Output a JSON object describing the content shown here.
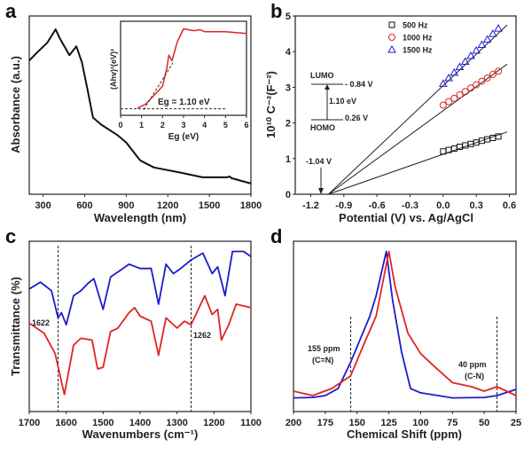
{
  "colors": {
    "blue": "#1c1ccc",
    "red": "#e02424",
    "black": "#111111"
  },
  "chart_data": [
    {
      "panel": "a",
      "type": "line",
      "xlabel": "Wavelength (nm)",
      "ylabel": "Absorbance (a.u.)",
      "xlim": [
        200,
        1800
      ],
      "ylim": [
        0,
        1
      ],
      "xticks": [
        300,
        600,
        900,
        1200,
        1500,
        1800
      ],
      "series": [
        {
          "name": "absorbance",
          "color": "black",
          "points": [
            [
              200,
              0.75
            ],
            [
              250,
              0.79
            ],
            [
              330,
              0.85
            ],
            [
              390,
              0.925
            ],
            [
              420,
              0.875
            ],
            [
              490,
              0.78
            ],
            [
              540,
              0.83
            ],
            [
              580,
              0.74
            ],
            [
              620,
              0.59
            ],
            [
              660,
              0.43
            ],
            [
              720,
              0.39
            ],
            [
              840,
              0.33
            ],
            [
              900,
              0.29
            ],
            [
              1000,
              0.19
            ],
            [
              1100,
              0.15
            ],
            [
              1300,
              0.12
            ],
            [
              1450,
              0.095
            ],
            [
              1630,
              0.095
            ],
            [
              1645,
              0.1
            ],
            [
              1660,
              0.09
            ],
            [
              1800,
              0.06
            ]
          ]
        }
      ],
      "inset": {
        "type": "line",
        "xlabel": "Eg (eV)",
        "ylabel": "(Ahv)²(eV)²",
        "xlim": [
          0,
          6
        ],
        "ylim": [
          0,
          1
        ],
        "xticks": [
          0,
          1,
          2,
          3,
          4,
          5,
          6
        ],
        "annotation": "Eg = 1.10 eV",
        "series": [
          {
            "name": "tauc",
            "color": "red",
            "points": [
              [
                0.8,
                0.075
              ],
              [
                1.2,
                0.12
              ],
              [
                1.5,
                0.19
              ],
              [
                1.8,
                0.26
              ],
              [
                2.0,
                0.31
              ],
              [
                2.2,
                0.5
              ],
              [
                2.3,
                0.64
              ],
              [
                2.45,
                0.58
              ],
              [
                2.7,
                0.78
              ],
              [
                3.0,
                0.92
              ],
              [
                3.5,
                0.9
              ],
              [
                3.8,
                0.91
              ],
              [
                4.0,
                0.89
              ],
              [
                5.0,
                0.89
              ],
              [
                6.0,
                0.87
              ]
            ]
          }
        ],
        "tangent": [
          [
            1.1,
            0.06
          ],
          [
            2.5,
            0.56
          ]
        ],
        "baseline": [
          [
            0,
            0.07
          ],
          [
            5,
            0.07
          ]
        ]
      }
    },
    {
      "panel": "b",
      "type": "scatter",
      "xlabel": "Potential (V) vs. Ag/AgCl",
      "ylabel": "10¹⁰ C⁻²(F⁻²)",
      "xlim": [
        -1.34,
        0.66
      ],
      "ylim": [
        0,
        5
      ],
      "xticks": [
        -1.2,
        -0.9,
        -0.6,
        -0.3,
        0.0,
        0.3,
        0.6
      ],
      "yticks": [
        0,
        1,
        2,
        3,
        4,
        5
      ],
      "legend_position": "top-right",
      "series": [
        {
          "name": "500 Hz",
          "marker": "square",
          "color": "black",
          "fit": [
            [
              -1.04,
              0
            ],
            [
              0.58,
              1.75
            ]
          ],
          "x": [
            0,
            0.05,
            0.1,
            0.15,
            0.2,
            0.25,
            0.3,
            0.35,
            0.4,
            0.45,
            0.5
          ],
          "y": [
            1.2,
            1.24,
            1.28,
            1.33,
            1.37,
            1.41,
            1.45,
            1.5,
            1.54,
            1.58,
            1.62
          ]
        },
        {
          "name": "1000 Hz",
          "marker": "circle",
          "color": "red",
          "fit": [
            [
              -1.04,
              0
            ],
            [
              0.58,
              3.65
            ]
          ],
          "x": [
            0,
            0.05,
            0.1,
            0.15,
            0.2,
            0.25,
            0.3,
            0.35,
            0.4,
            0.45,
            0.5
          ],
          "y": [
            2.5,
            2.6,
            2.69,
            2.79,
            2.88,
            2.98,
            3.07,
            3.17,
            3.26,
            3.36,
            3.45
          ]
        },
        {
          "name": "1500 Hz",
          "marker": "triangle",
          "color": "blue",
          "fit": [
            [
              -1.04,
              0
            ],
            [
              0.58,
              4.75
            ]
          ],
          "x": [
            0,
            0.05,
            0.1,
            0.15,
            0.2,
            0.25,
            0.3,
            0.35,
            0.4,
            0.45,
            0.5
          ],
          "y": [
            3.1,
            3.26,
            3.41,
            3.57,
            3.72,
            3.88,
            4.03,
            4.19,
            4.34,
            4.5,
            4.65
          ]
        }
      ],
      "annotations": {
        "intercept": "-1.04 V",
        "lumo": "LUMO",
        "lumo_v": "- 0.84 V",
        "gap": "1.10 eV",
        "homo": "HOMO",
        "homo_v": "0.26 V"
      }
    },
    {
      "panel": "c",
      "type": "line",
      "xlabel": "Wavenumbers (cm⁻¹)",
      "ylabel": "Transmittance (%)",
      "xlim": [
        1700,
        1100
      ],
      "ylim": [
        0,
        1
      ],
      "xticks": [
        1700,
        1600,
        1500,
        1400,
        1300,
        1200,
        1100
      ],
      "vlines": [
        {
          "x": 1622,
          "label": "1622"
        },
        {
          "x": 1262,
          "label": "1262"
        }
      ],
      "series": [
        {
          "name": "blue-spectrum",
          "color": "blue",
          "points": [
            [
              1700,
              0.72
            ],
            [
              1670,
              0.76
            ],
            [
              1640,
              0.71
            ],
            [
              1622,
              0.55
            ],
            [
              1613,
              0.58
            ],
            [
              1600,
              0.51
            ],
            [
              1580,
              0.68
            ],
            [
              1560,
              0.71
            ],
            [
              1540,
              0.755
            ],
            [
              1525,
              0.78
            ],
            [
              1500,
              0.6
            ],
            [
              1480,
              0.79
            ],
            [
              1460,
              0.82
            ],
            [
              1430,
              0.865
            ],
            [
              1400,
              0.84
            ],
            [
              1370,
              0.84
            ],
            [
              1350,
              0.63
            ],
            [
              1330,
              0.865
            ],
            [
              1310,
              0.81
            ],
            [
              1290,
              0.84
            ],
            [
              1262,
              0.89
            ],
            [
              1230,
              0.93
            ],
            [
              1205,
              0.81
            ],
            [
              1190,
              0.85
            ],
            [
              1170,
              0.68
            ],
            [
              1150,
              0.94
            ],
            [
              1120,
              0.94
            ],
            [
              1100,
              0.91
            ]
          ]
        },
        {
          "name": "red-spectrum",
          "color": "red",
          "points": [
            [
              1700,
              0.52
            ],
            [
              1660,
              0.46
            ],
            [
              1630,
              0.34
            ],
            [
              1605,
              0.1
            ],
            [
              1580,
              0.39
            ],
            [
              1560,
              0.43
            ],
            [
              1530,
              0.42
            ],
            [
              1515,
              0.25
            ],
            [
              1500,
              0.26
            ],
            [
              1480,
              0.47
            ],
            [
              1460,
              0.49
            ],
            [
              1430,
              0.58
            ],
            [
              1415,
              0.61
            ],
            [
              1400,
              0.56
            ],
            [
              1370,
              0.53
            ],
            [
              1350,
              0.33
            ],
            [
              1330,
              0.55
            ],
            [
              1300,
              0.49
            ],
            [
              1280,
              0.53
            ],
            [
              1262,
              0.51
            ],
            [
              1225,
              0.68
            ],
            [
              1205,
              0.57
            ],
            [
              1190,
              0.6
            ],
            [
              1180,
              0.42
            ],
            [
              1160,
              0.51
            ],
            [
              1140,
              0.63
            ],
            [
              1100,
              0.61
            ]
          ]
        }
      ]
    },
    {
      "panel": "d",
      "type": "line",
      "xlabel": "Chemical Shift (ppm)",
      "ylabel": "",
      "xlim": [
        200,
        25
      ],
      "ylim": [
        0,
        1
      ],
      "xticks": [
        200,
        175,
        150,
        125,
        100,
        75,
        50,
        25
      ],
      "vlines": [
        {
          "x": 155,
          "label": "155 ppm",
          "sub": "(C=N)"
        },
        {
          "x": 40,
          "label": "40 ppm",
          "sub": "(C-N)"
        }
      ],
      "series": [
        {
          "name": "blue-spectrum",
          "color": "blue",
          "points": [
            [
              200,
              0.08
            ],
            [
              185,
              0.083
            ],
            [
              175,
              0.094
            ],
            [
              165,
              0.135
            ],
            [
              155,
              0.29
            ],
            [
              145,
              0.47
            ],
            [
              140,
              0.56
            ],
            [
              135,
              0.68
            ],
            [
              127,
              0.94
            ],
            [
              122,
              0.65
            ],
            [
              115,
              0.35
            ],
            [
              108,
              0.135
            ],
            [
              100,
              0.11
            ],
            [
              75,
              0.08
            ],
            [
              50,
              0.083
            ],
            [
              40,
              0.094
            ],
            [
              25,
              0.13
            ]
          ]
        },
        {
          "name": "red-spectrum",
          "color": "red",
          "points": [
            [
              200,
              0.12
            ],
            [
              185,
              0.094
            ],
            [
              170,
              0.135
            ],
            [
              155,
              0.21
            ],
            [
              145,
              0.39
            ],
            [
              135,
              0.56
            ],
            [
              125,
              0.94
            ],
            [
              120,
              0.73
            ],
            [
              110,
              0.46
            ],
            [
              100,
              0.34
            ],
            [
              90,
              0.27
            ],
            [
              75,
              0.17
            ],
            [
              60,
              0.146
            ],
            [
              50,
              0.12
            ],
            [
              40,
              0.146
            ],
            [
              25,
              0.094
            ]
          ]
        }
      ]
    }
  ],
  "panel_labels": [
    "a",
    "b",
    "c",
    "d"
  ]
}
